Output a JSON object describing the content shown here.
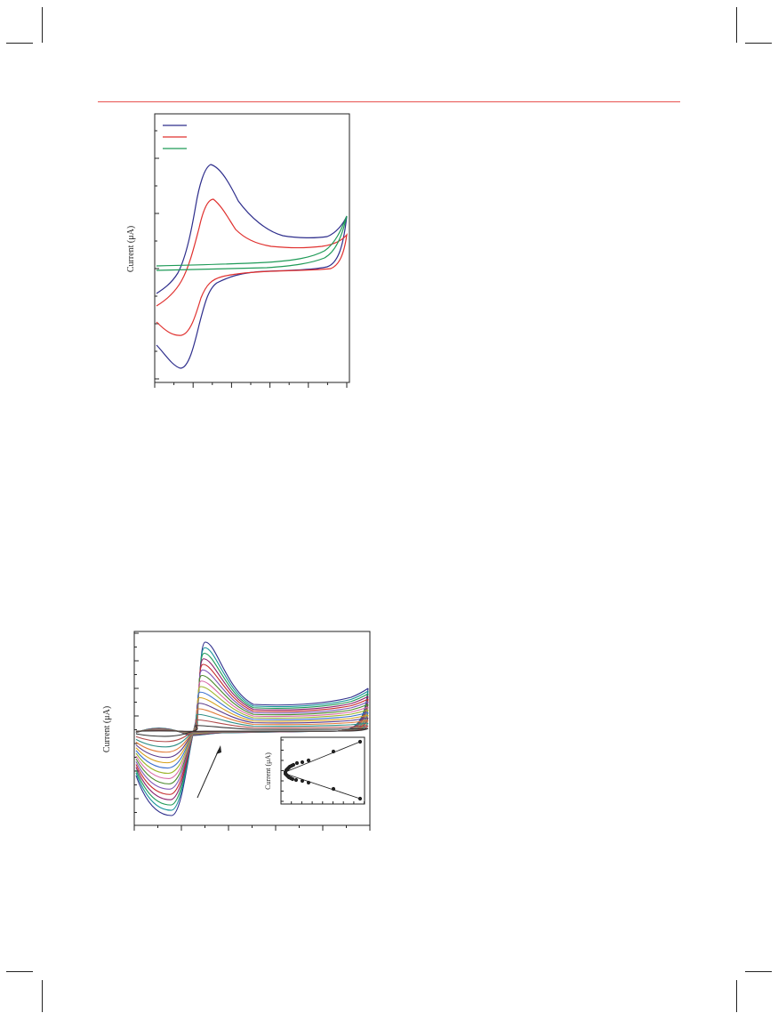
{
  "chart_data": [
    {
      "type": "line",
      "ylabel": "Current (μA)",
      "legend": "top-left",
      "series": [
        {
          "color": "#2e2e8c"
        },
        {
          "color": "#e0312f"
        },
        {
          "color": "#1e9a57"
        }
      ]
    },
    {
      "type": "line",
      "ylabel": "Current (μA)",
      "annotation_arrow": "increasing scan rate (upward arrow)",
      "series_colors": [
        "#2e2e8c",
        "#16939a",
        "#1e9a57",
        "#8a1f6b",
        "#c42a2a",
        "#7d57b6",
        "#4a8a2b",
        "#d86aa7",
        "#9db52b",
        "#3a6fcf",
        "#d6a21e",
        "#5a3a8a",
        "#e07b39",
        "#2f8f86",
        "#b04a4a",
        "#333333"
      ],
      "inset": {
        "type": "scatter",
        "ylabel": "Current (μA)"
      }
    }
  ]
}
